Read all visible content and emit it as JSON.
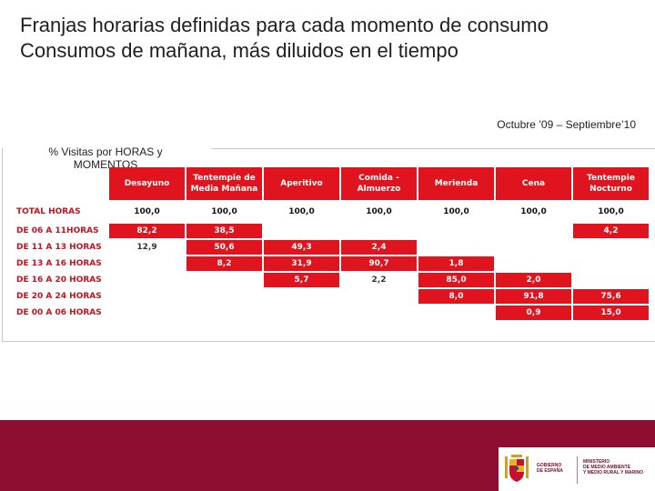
{
  "title": {
    "line1": "Franjas horarias definidas para cada momento de consumo",
    "line2": "Consumos de mañana, más diluidos en el tiempo"
  },
  "period": "Octubre ’09 – Septiembre’10",
  "caption": {
    "line1": "% Visitas por HORAS y",
    "line2": "MOMENTOS"
  },
  "table": {
    "columns": [
      "Desayuno",
      "Tentempie de Media Mañana",
      "Aperitivo",
      "Comida - Almuerzo",
      "Merienda",
      "Cena",
      "Tentempie Nocturno"
    ],
    "column_lines": [
      [
        "Desayuno"
      ],
      [
        "Tentempie de",
        "Media Mañana"
      ],
      [
        "Aperitivo"
      ],
      [
        "Comida -",
        "Almuerzo"
      ],
      [
        "Merienda"
      ],
      [
        "Cena"
      ],
      [
        "Tentempie",
        "Nocturno"
      ]
    ],
    "rows": [
      {
        "label": "TOTAL HORAS",
        "total": true,
        "cells": [
          {
            "v": "100,0",
            "h": false
          },
          {
            "v": "100,0",
            "h": false
          },
          {
            "v": "100,0",
            "h": false
          },
          {
            "v": "100,0",
            "h": false
          },
          {
            "v": "100,0",
            "h": false
          },
          {
            "v": "100,0",
            "h": false
          },
          {
            "v": "100,0",
            "h": false
          }
        ]
      },
      {
        "label": "DE 06 A 11HORAS",
        "cells": [
          {
            "v": "82,2",
            "h": true
          },
          {
            "v": "38,5",
            "h": true
          },
          {
            "v": "",
            "h": false
          },
          {
            "v": "",
            "h": false
          },
          {
            "v": "",
            "h": false
          },
          {
            "v": "",
            "h": false
          },
          {
            "v": "4,2",
            "h": true
          }
        ]
      },
      {
        "label": "DE 11 A 13 HORAS",
        "cells": [
          {
            "v": "12,9",
            "h": false
          },
          {
            "v": "50,6",
            "h": true
          },
          {
            "v": "49,3",
            "h": true
          },
          {
            "v": "2,4",
            "h": true
          },
          {
            "v": "",
            "h": false
          },
          {
            "v": "",
            "h": false
          },
          {
            "v": "",
            "h": false
          }
        ]
      },
      {
        "label": "DE 13 A 16 HORAS",
        "cells": [
          {
            "v": "",
            "h": false
          },
          {
            "v": "8,2",
            "h": true
          },
          {
            "v": "31,9",
            "h": true
          },
          {
            "v": "90,7",
            "h": true
          },
          {
            "v": "1,8",
            "h": true
          },
          {
            "v": "",
            "h": false
          },
          {
            "v": "",
            "h": false
          }
        ]
      },
      {
        "label": "DE 16 A 20 HORAS",
        "cells": [
          {
            "v": "",
            "h": false
          },
          {
            "v": "",
            "h": false
          },
          {
            "v": "5,7",
            "h": true
          },
          {
            "v": "2,2",
            "h": false
          },
          {
            "v": "85,0",
            "h": true
          },
          {
            "v": "2,0",
            "h": true
          },
          {
            "v": "",
            "h": false
          }
        ]
      },
      {
        "label": "DE 20 A 24 HORAS",
        "cells": [
          {
            "v": "",
            "h": false
          },
          {
            "v": "",
            "h": false
          },
          {
            "v": "",
            "h": false
          },
          {
            "v": "",
            "h": false
          },
          {
            "v": "8,0",
            "h": true
          },
          {
            "v": "91,8",
            "h": true
          },
          {
            "v": "75,6",
            "h": true
          }
        ]
      },
      {
        "label": "DE 00 A 06 HORAS",
        "cells": [
          {
            "v": "",
            "h": false
          },
          {
            "v": "",
            "h": false
          },
          {
            "v": "",
            "h": false
          },
          {
            "v": "",
            "h": false
          },
          {
            "v": "",
            "h": false
          },
          {
            "v": "0,9",
            "h": true
          },
          {
            "v": "15,0",
            "h": true
          }
        ]
      }
    ]
  },
  "footer": {
    "government_lines": [
      "GOBIERNO",
      "DE ESPAÑA"
    ],
    "ministry_lines": [
      "MINISTERIO",
      "DE MEDIO AMBIENTE",
      "Y MEDIO RURAL Y MARINO"
    ],
    "emblem_icon": "coat-of-arms-icon",
    "colors": {
      "bar": "#8e0e31",
      "highlight": "#e0141e"
    }
  }
}
